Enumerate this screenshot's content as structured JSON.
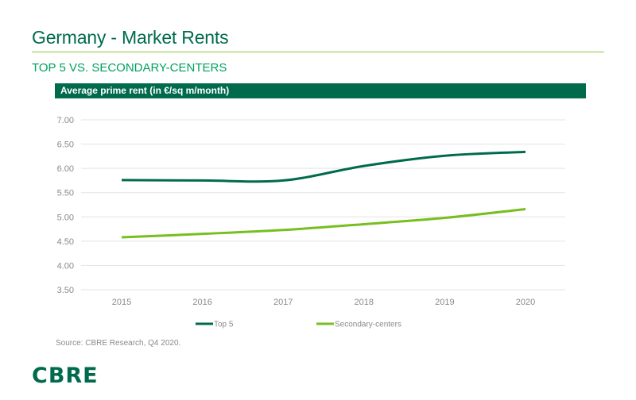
{
  "page": {
    "title": "Germany - Market Rents",
    "subtitle": "TOP 5 VS. SECONDARY-CENTERS",
    "source": "Source: CBRE Research, Q4 2020.",
    "logo": "CBRE"
  },
  "colors": {
    "brand_dark": "#006a4d",
    "accent_green": "#8cc63f",
    "subtitle_green": "#00a160"
  },
  "chart_data": {
    "type": "line",
    "title": "Average prime rent (in €/sq m/month)",
    "xlabel": "",
    "ylabel": "",
    "x": [
      "2015",
      "2016",
      "2017",
      "2018",
      "2019",
      "2020"
    ],
    "ylim": [
      3.5,
      7.0
    ],
    "yticks": [
      "3.50",
      "4.00",
      "4.50",
      "5.00",
      "5.50",
      "6.00",
      "6.50",
      "7.00"
    ],
    "grid": true,
    "legend_position": "bottom",
    "series": [
      {
        "name": "Top 5",
        "color": "#006a4d",
        "values": [
          5.76,
          5.75,
          5.75,
          6.05,
          6.26,
          6.34
        ]
      },
      {
        "name": "Secondary-centers",
        "color": "#78be20",
        "values": [
          4.58,
          4.65,
          4.73,
          4.85,
          4.98,
          5.16
        ]
      }
    ]
  }
}
